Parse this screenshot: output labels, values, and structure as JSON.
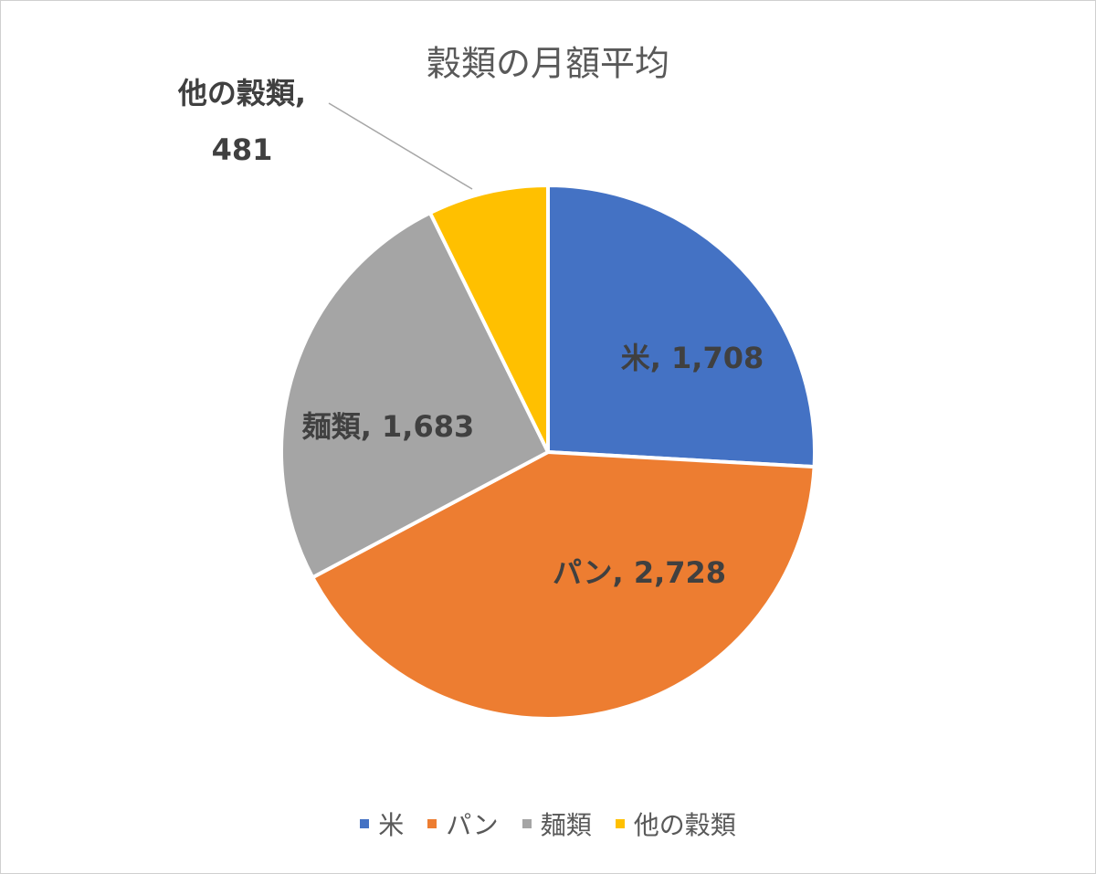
{
  "chart_data": {
    "type": "pie",
    "title": "穀類の月額平均",
    "categories": [
      "米",
      "パン",
      "麺類",
      "他の穀類"
    ],
    "values": [
      1708,
      2728,
      1683,
      481
    ],
    "value_labels": [
      "米, 1,708",
      "パン, 2,728",
      "麺類, 1,683",
      "他の穀類, 481"
    ],
    "colors": [
      "#4472c4",
      "#ed7d31",
      "#a5a5a5",
      "#ffc000"
    ],
    "legend": "bottom"
  }
}
